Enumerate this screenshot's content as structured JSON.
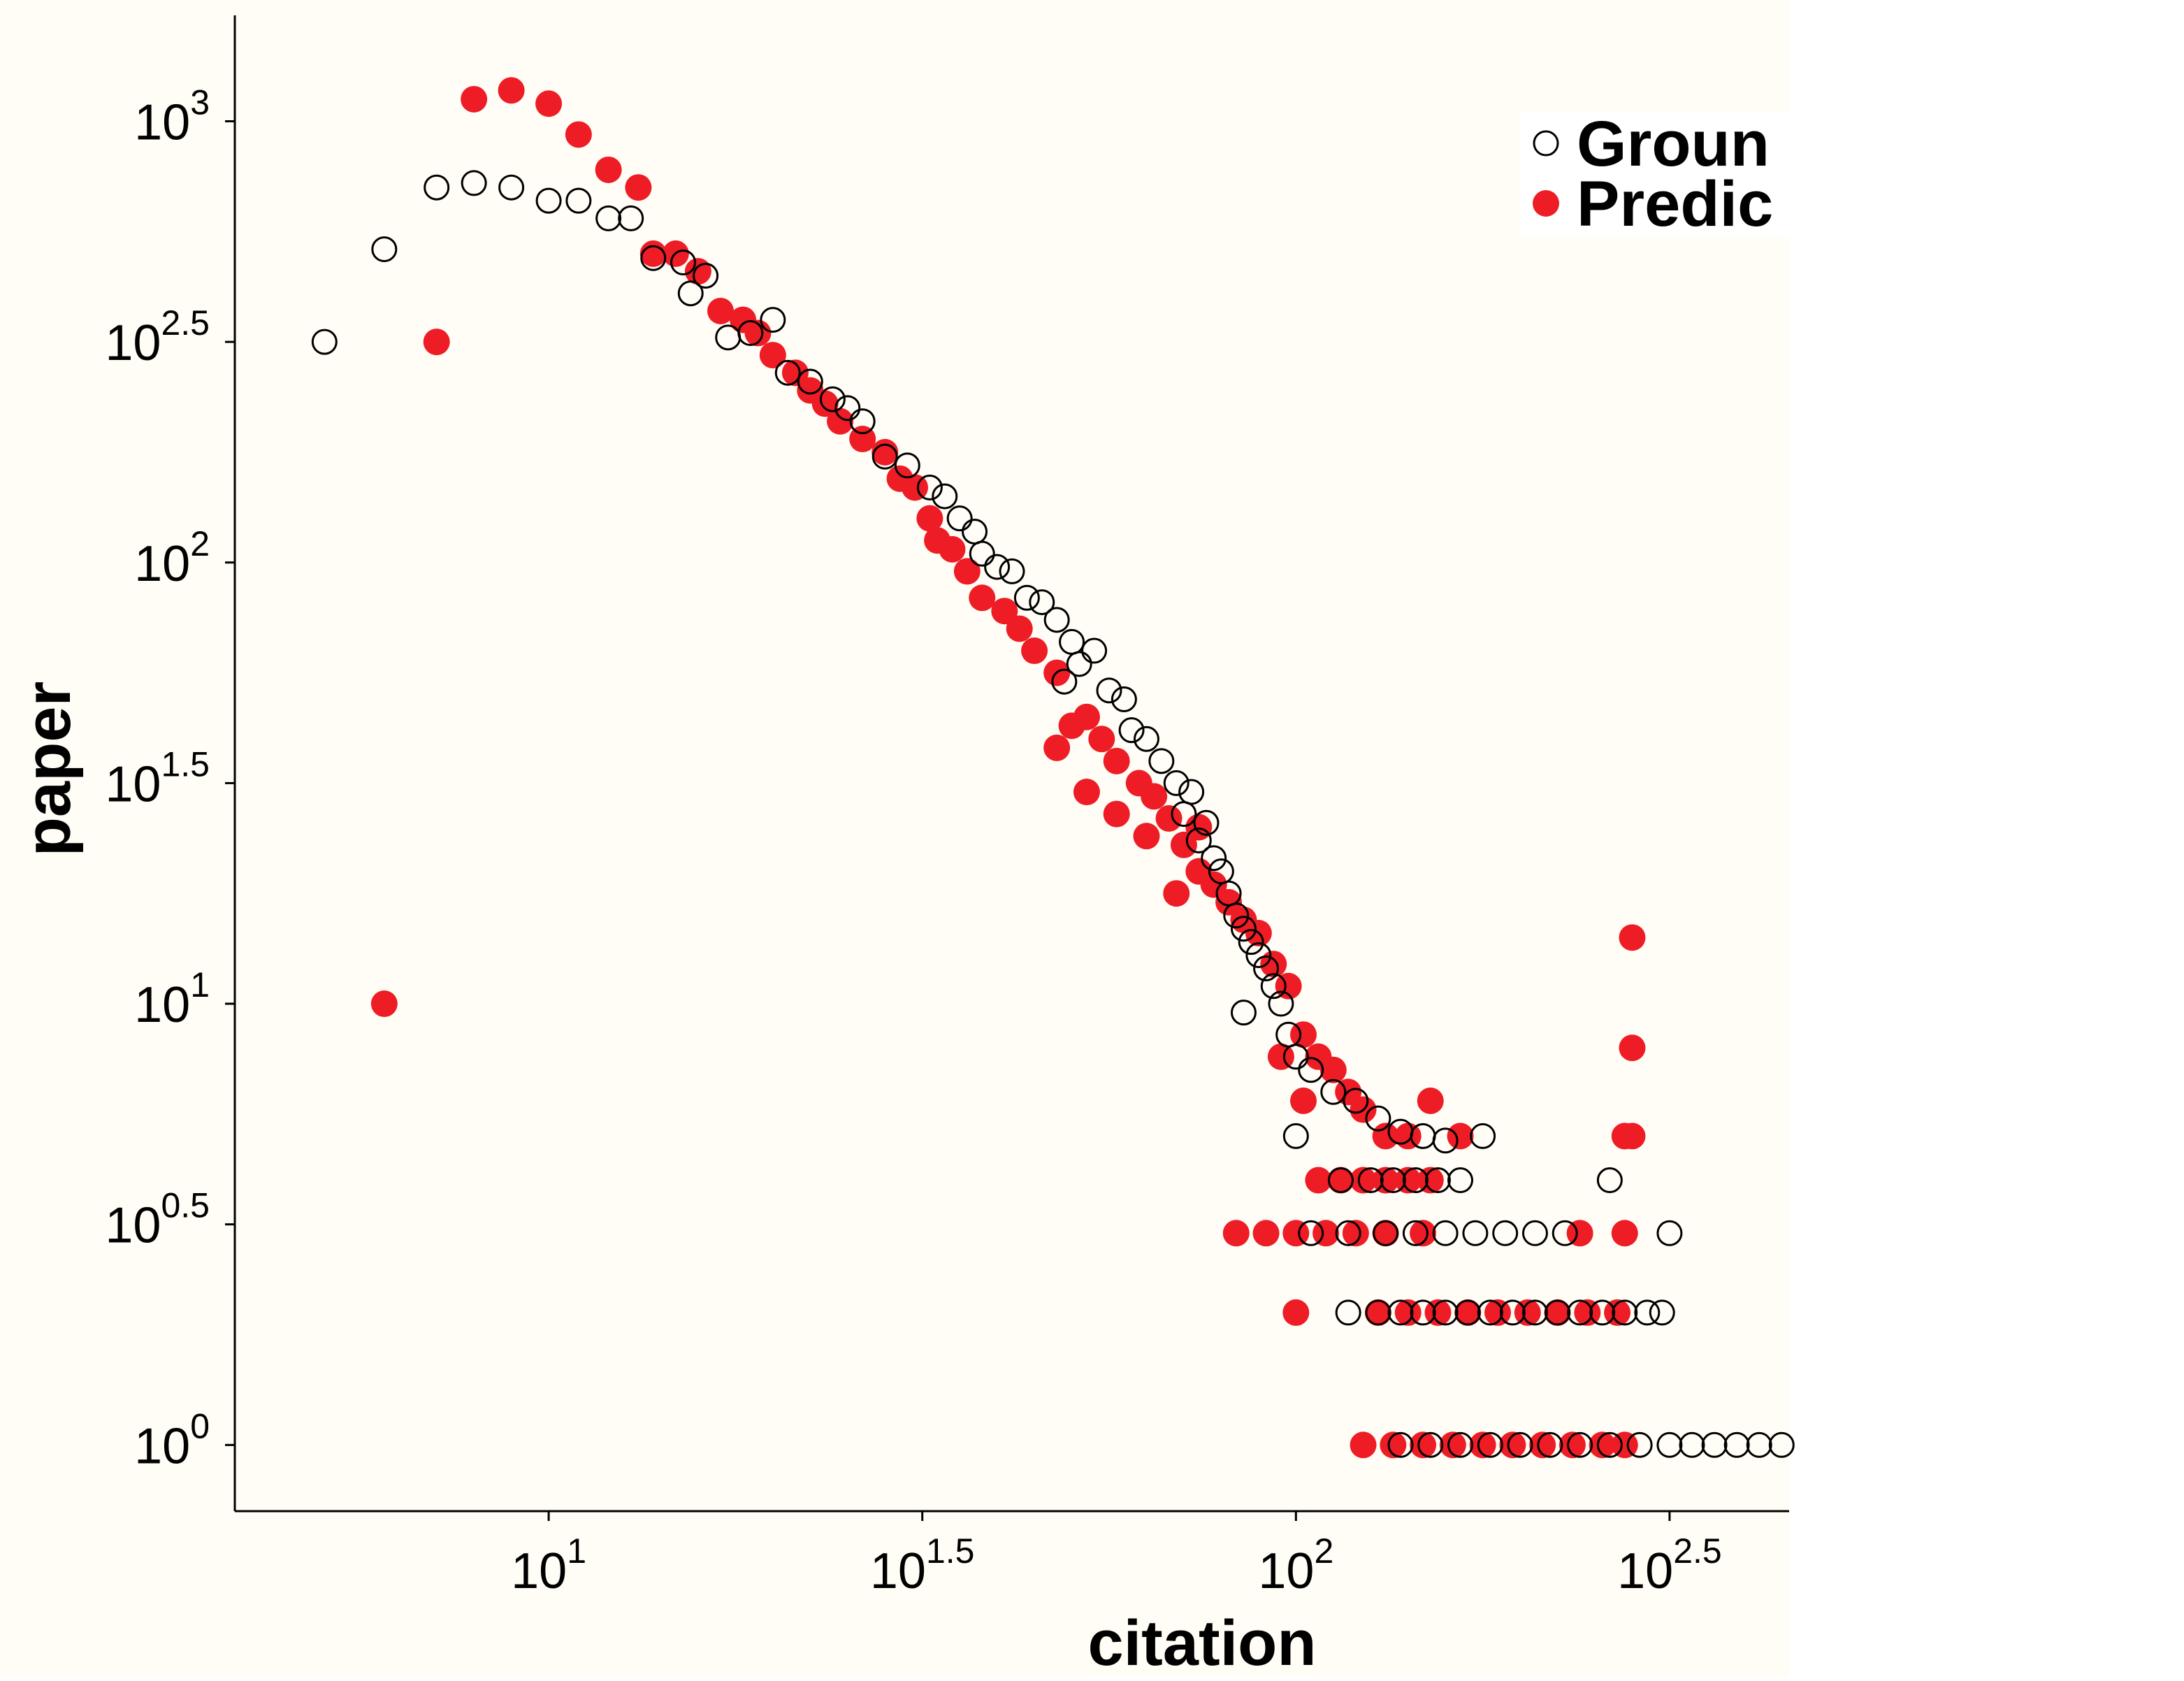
{
  "colors": {
    "background": "#fffdf5",
    "page": "#ffffff",
    "axis": "#000000",
    "predicted": "#ee1c25",
    "ground_edge": "#000000"
  },
  "chart_data": {
    "type": "scatter",
    "x_scale": "log10",
    "y_scale": "log10",
    "xlabel": "citation",
    "ylabel": "paper",
    "xlim_log10": [
      0.58,
      2.66
    ],
    "ylim_log10": [
      -0.15,
      3.24
    ],
    "legend_position": "top-right",
    "x_ticks": [
      {
        "base": "10",
        "exp": "1"
      },
      {
        "base": "10",
        "exp": "1.5"
      },
      {
        "base": "10",
        "exp": "2"
      },
      {
        "base": "10",
        "exp": "2.5"
      }
    ],
    "x_tick_values": [
      1,
      1.5,
      2,
      2.5
    ],
    "y_ticks": [
      {
        "base": "10",
        "exp": "0"
      },
      {
        "base": "10",
        "exp": "0.5"
      },
      {
        "base": "10",
        "exp": "1"
      },
      {
        "base": "10",
        "exp": "1.5"
      },
      {
        "base": "10",
        "exp": "2"
      },
      {
        "base": "10",
        "exp": "2.5"
      },
      {
        "base": "10",
        "exp": "3"
      }
    ],
    "y_tick_values": [
      0,
      0.5,
      1,
      1.5,
      2,
      2.5,
      3
    ],
    "legend": [
      {
        "label": "Groun",
        "series": "ground_truth"
      },
      {
        "label": "Predic",
        "series": "predicted"
      }
    ],
    "series": [
      {
        "name": "Ground truth",
        "style": "open-circle",
        "log10_points": [
          [
            0.7,
            2.5
          ],
          [
            0.78,
            2.71
          ],
          [
            0.85,
            2.85
          ],
          [
            0.9,
            2.86
          ],
          [
            0.95,
            2.85
          ],
          [
            1.0,
            2.82
          ],
          [
            1.04,
            2.82
          ],
          [
            1.08,
            2.78
          ],
          [
            1.11,
            2.78
          ],
          [
            1.14,
            2.69
          ],
          [
            1.18,
            2.68
          ],
          [
            1.21,
            2.65
          ],
          [
            1.19,
            2.61
          ],
          [
            1.24,
            2.51
          ],
          [
            1.27,
            2.52
          ],
          [
            1.3,
            2.55
          ],
          [
            1.32,
            2.43
          ],
          [
            1.35,
            2.41
          ],
          [
            1.38,
            2.37
          ],
          [
            1.4,
            2.35
          ],
          [
            1.42,
            2.32
          ],
          [
            1.45,
            2.24
          ],
          [
            1.48,
            2.22
          ],
          [
            1.51,
            2.17
          ],
          [
            1.53,
            2.15
          ],
          [
            1.55,
            2.1
          ],
          [
            1.57,
            2.07
          ],
          [
            1.58,
            2.02
          ],
          [
            1.6,
            1.99
          ],
          [
            1.62,
            1.98
          ],
          [
            1.64,
            1.92
          ],
          [
            1.66,
            1.91
          ],
          [
            1.68,
            1.87
          ],
          [
            1.7,
            1.82
          ],
          [
            1.69,
            1.73
          ],
          [
            1.71,
            1.77
          ],
          [
            1.73,
            1.8
          ],
          [
            1.75,
            1.71
          ],
          [
            1.77,
            1.69
          ],
          [
            1.78,
            1.62
          ],
          [
            1.8,
            1.6
          ],
          [
            1.82,
            1.55
          ],
          [
            1.84,
            1.5
          ],
          [
            1.85,
            1.43
          ],
          [
            1.86,
            1.48
          ],
          [
            1.87,
            1.37
          ],
          [
            1.88,
            1.41
          ],
          [
            1.89,
            1.33
          ],
          [
            1.9,
            1.3
          ],
          [
            1.91,
            1.25
          ],
          [
            1.92,
            1.2
          ],
          [
            1.93,
            1.17
          ],
          [
            1.94,
            1.14
          ],
          [
            1.95,
            1.11
          ],
          [
            1.96,
            1.08
          ],
          [
            1.97,
            1.04
          ],
          [
            1.98,
            1.0
          ],
          [
            1.93,
            0.98
          ],
          [
            1.99,
            0.93
          ],
          [
            2.0,
            0.88
          ],
          [
            2.02,
            0.85
          ],
          [
            2.05,
            0.8
          ],
          [
            2.08,
            0.78
          ],
          [
            2.11,
            0.74
          ],
          [
            2.14,
            0.71
          ],
          [
            2.17,
            0.7
          ],
          [
            2.2,
            0.69
          ],
          [
            2.25,
            0.7
          ],
          [
            2.0,
            0.7
          ],
          [
            2.06,
            0.6
          ],
          [
            2.1,
            0.6
          ],
          [
            2.13,
            0.6
          ],
          [
            2.16,
            0.6
          ],
          [
            2.19,
            0.6
          ],
          [
            2.22,
            0.6
          ],
          [
            2.02,
            0.48
          ],
          [
            2.07,
            0.48
          ],
          [
            2.12,
            0.48
          ],
          [
            2.16,
            0.48
          ],
          [
            2.2,
            0.48
          ],
          [
            2.24,
            0.48
          ],
          [
            2.28,
            0.48
          ],
          [
            2.32,
            0.48
          ],
          [
            2.36,
            0.48
          ],
          [
            2.42,
            0.6
          ],
          [
            2.5,
            0.48
          ],
          [
            2.07,
            0.3
          ],
          [
            2.11,
            0.3
          ],
          [
            2.14,
            0.3
          ],
          [
            2.17,
            0.3
          ],
          [
            2.2,
            0.3
          ],
          [
            2.23,
            0.3
          ],
          [
            2.26,
            0.3
          ],
          [
            2.29,
            0.3
          ],
          [
            2.32,
            0.3
          ],
          [
            2.35,
            0.3
          ],
          [
            2.38,
            0.3
          ],
          [
            2.41,
            0.3
          ],
          [
            2.44,
            0.3
          ],
          [
            2.47,
            0.3
          ],
          [
            2.49,
            0.3
          ],
          [
            2.14,
            0.0
          ],
          [
            2.18,
            0.0
          ],
          [
            2.22,
            0.0
          ],
          [
            2.26,
            0.0
          ],
          [
            2.3,
            0.0
          ],
          [
            2.34,
            0.0
          ],
          [
            2.38,
            0.0
          ],
          [
            2.42,
            0.0
          ],
          [
            2.46,
            0.0
          ],
          [
            2.5,
            0.0
          ],
          [
            2.53,
            0.0
          ],
          [
            2.56,
            0.0
          ],
          [
            2.59,
            0.0
          ],
          [
            2.62,
            0.0
          ],
          [
            2.65,
            0.0
          ]
        ]
      },
      {
        "name": "Predicted",
        "style": "filled-circle",
        "log10_points": [
          [
            0.78,
            1.0
          ],
          [
            0.85,
            2.5
          ],
          [
            0.9,
            3.05
          ],
          [
            0.95,
            3.07
          ],
          [
            1.0,
            3.04
          ],
          [
            1.04,
            2.97
          ],
          [
            1.08,
            2.89
          ],
          [
            1.12,
            2.85
          ],
          [
            1.14,
            2.7
          ],
          [
            1.17,
            2.7
          ],
          [
            1.2,
            2.66
          ],
          [
            1.23,
            2.57
          ],
          [
            1.26,
            2.55
          ],
          [
            1.28,
            2.52
          ],
          [
            1.3,
            2.47
          ],
          [
            1.33,
            2.43
          ],
          [
            1.35,
            2.39
          ],
          [
            1.37,
            2.36
          ],
          [
            1.39,
            2.32
          ],
          [
            1.42,
            2.28
          ],
          [
            1.45,
            2.25
          ],
          [
            1.47,
            2.19
          ],
          [
            1.49,
            2.17
          ],
          [
            1.51,
            2.1
          ],
          [
            1.52,
            2.05
          ],
          [
            1.54,
            2.03
          ],
          [
            1.56,
            1.98
          ],
          [
            1.58,
            1.92
          ],
          [
            1.61,
            1.89
          ],
          [
            1.63,
            1.85
          ],
          [
            1.65,
            1.8
          ],
          [
            1.68,
            1.75
          ],
          [
            1.7,
            1.63
          ],
          [
            1.72,
            1.65
          ],
          [
            1.74,
            1.6
          ],
          [
            1.76,
            1.55
          ],
          [
            1.79,
            1.5
          ],
          [
            1.81,
            1.47
          ],
          [
            1.83,
            1.42
          ],
          [
            1.85,
            1.36
          ],
          [
            1.87,
            1.3
          ],
          [
            1.89,
            1.27
          ],
          [
            1.91,
            1.23
          ],
          [
            1.93,
            1.19
          ],
          [
            1.95,
            1.16
          ],
          [
            1.97,
            1.09
          ],
          [
            1.99,
            1.04
          ],
          [
            2.01,
            0.93
          ],
          [
            2.03,
            0.88
          ],
          [
            2.05,
            0.85
          ],
          [
            2.07,
            0.8
          ],
          [
            2.09,
            0.76
          ],
          [
            2.12,
            0.7
          ],
          [
            2.15,
            0.7
          ],
          [
            2.18,
            0.78
          ],
          [
            2.22,
            0.7
          ],
          [
            2.03,
            0.6
          ],
          [
            2.06,
            0.6
          ],
          [
            2.09,
            0.6
          ],
          [
            2.12,
            0.6
          ],
          [
            2.15,
            0.6
          ],
          [
            2.18,
            0.6
          ],
          [
            1.87,
            1.4
          ],
          [
            1.84,
            1.25
          ],
          [
            1.8,
            1.38
          ],
          [
            1.76,
            1.43
          ],
          [
            1.72,
            1.48
          ],
          [
            1.68,
            1.58
          ],
          [
            1.98,
            0.88
          ],
          [
            2.01,
            0.78
          ],
          [
            1.92,
            0.48
          ],
          [
            1.96,
            0.48
          ],
          [
            2.0,
            0.48
          ],
          [
            2.04,
            0.48
          ],
          [
            2.08,
            0.48
          ],
          [
            2.12,
            0.48
          ],
          [
            2.17,
            0.48
          ],
          [
            2.38,
            0.48
          ],
          [
            2.44,
            0.48
          ],
          [
            2.44,
            0.7
          ],
          [
            2.45,
            0.7
          ],
          [
            2.45,
            0.9
          ],
          [
            2.45,
            1.15
          ],
          [
            2.0,
            0.3
          ],
          [
            2.11,
            0.3
          ],
          [
            2.15,
            0.3
          ],
          [
            2.19,
            0.3
          ],
          [
            2.23,
            0.3
          ],
          [
            2.27,
            0.3
          ],
          [
            2.31,
            0.3
          ],
          [
            2.35,
            0.3
          ],
          [
            2.39,
            0.3
          ],
          [
            2.43,
            0.3
          ],
          [
            2.09,
            0.0
          ],
          [
            2.13,
            0.0
          ],
          [
            2.17,
            0.0
          ],
          [
            2.21,
            0.0
          ],
          [
            2.25,
            0.0
          ],
          [
            2.29,
            0.0
          ],
          [
            2.33,
            0.0
          ],
          [
            2.37,
            0.0
          ],
          [
            2.41,
            0.0
          ],
          [
            2.44,
            0.0
          ]
        ]
      }
    ]
  }
}
